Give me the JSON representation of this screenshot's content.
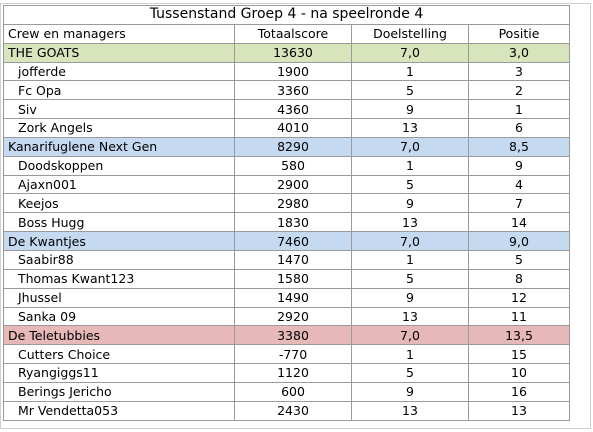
{
  "title": "Tussenstand Groep 4 - na speelronde 4",
  "headers": [
    "Crew en managers",
    "Totaalscore",
    "Doelstelling",
    "Positie"
  ],
  "colors": {
    "team_green": "#d8e4bc",
    "team_blue": "#c5d9f1",
    "team_red": "#e6b8b7",
    "grid": "#9a9a9a"
  },
  "teams": [
    {
      "name": "THE GOATS",
      "total": "13630",
      "goal": "7,0",
      "position": "3,0",
      "managers": [
        {
          "name": "jofferde",
          "score": "1900",
          "goal": "1",
          "position": "3"
        },
        {
          "name": "Fc Opa",
          "score": "3360",
          "goal": "5",
          "position": "2"
        },
        {
          "name": "Siv",
          "score": "4360",
          "goal": "9",
          "position": "1"
        },
        {
          "name": "Zork Angels",
          "score": "4010",
          "goal": "13",
          "position": "6"
        }
      ]
    },
    {
      "name": "Kanarifuglene Next Gen",
      "total": "8290",
      "goal": "7,0",
      "position": "8,5",
      "managers": [
        {
          "name": "Doodskoppen",
          "score": "580",
          "goal": "1",
          "position": "9"
        },
        {
          "name": "Ajaxn001",
          "score": "2900",
          "goal": "5",
          "position": "4"
        },
        {
          "name": "Keejos",
          "score": "2980",
          "goal": "9",
          "position": "7"
        },
        {
          "name": "Boss Hugg",
          "score": "1830",
          "goal": "13",
          "position": "14"
        }
      ]
    },
    {
      "name": "De Kwantjes",
      "total": "7460",
      "goal": "7,0",
      "position": "9,0",
      "managers": [
        {
          "name": "Saabir88",
          "score": "1470",
          "goal": "1",
          "position": "5"
        },
        {
          "name": "Thomas Kwant123",
          "score": "1580",
          "goal": "5",
          "position": "8"
        },
        {
          "name": "Jhussel",
          "score": "1490",
          "goal": "9",
          "position": "12"
        },
        {
          "name": "Sanka 09",
          "score": "2920",
          "goal": "13",
          "position": "11"
        }
      ]
    },
    {
      "name": "De Teletubbies",
      "total": "3380",
      "goal": "7,0",
      "position": "13,5",
      "managers": [
        {
          "name": "Cutters Choice",
          "score": "-770",
          "goal": "1",
          "position": "15"
        },
        {
          "name": "Ryangiggs11",
          "score": "1120",
          "goal": "5",
          "position": "10"
        },
        {
          "name": "Berings Jericho",
          "score": "600",
          "goal": "9",
          "position": "16"
        },
        {
          "name": "Mr Vendetta053",
          "score": "2430",
          "goal": "13",
          "position": "13"
        }
      ]
    }
  ]
}
